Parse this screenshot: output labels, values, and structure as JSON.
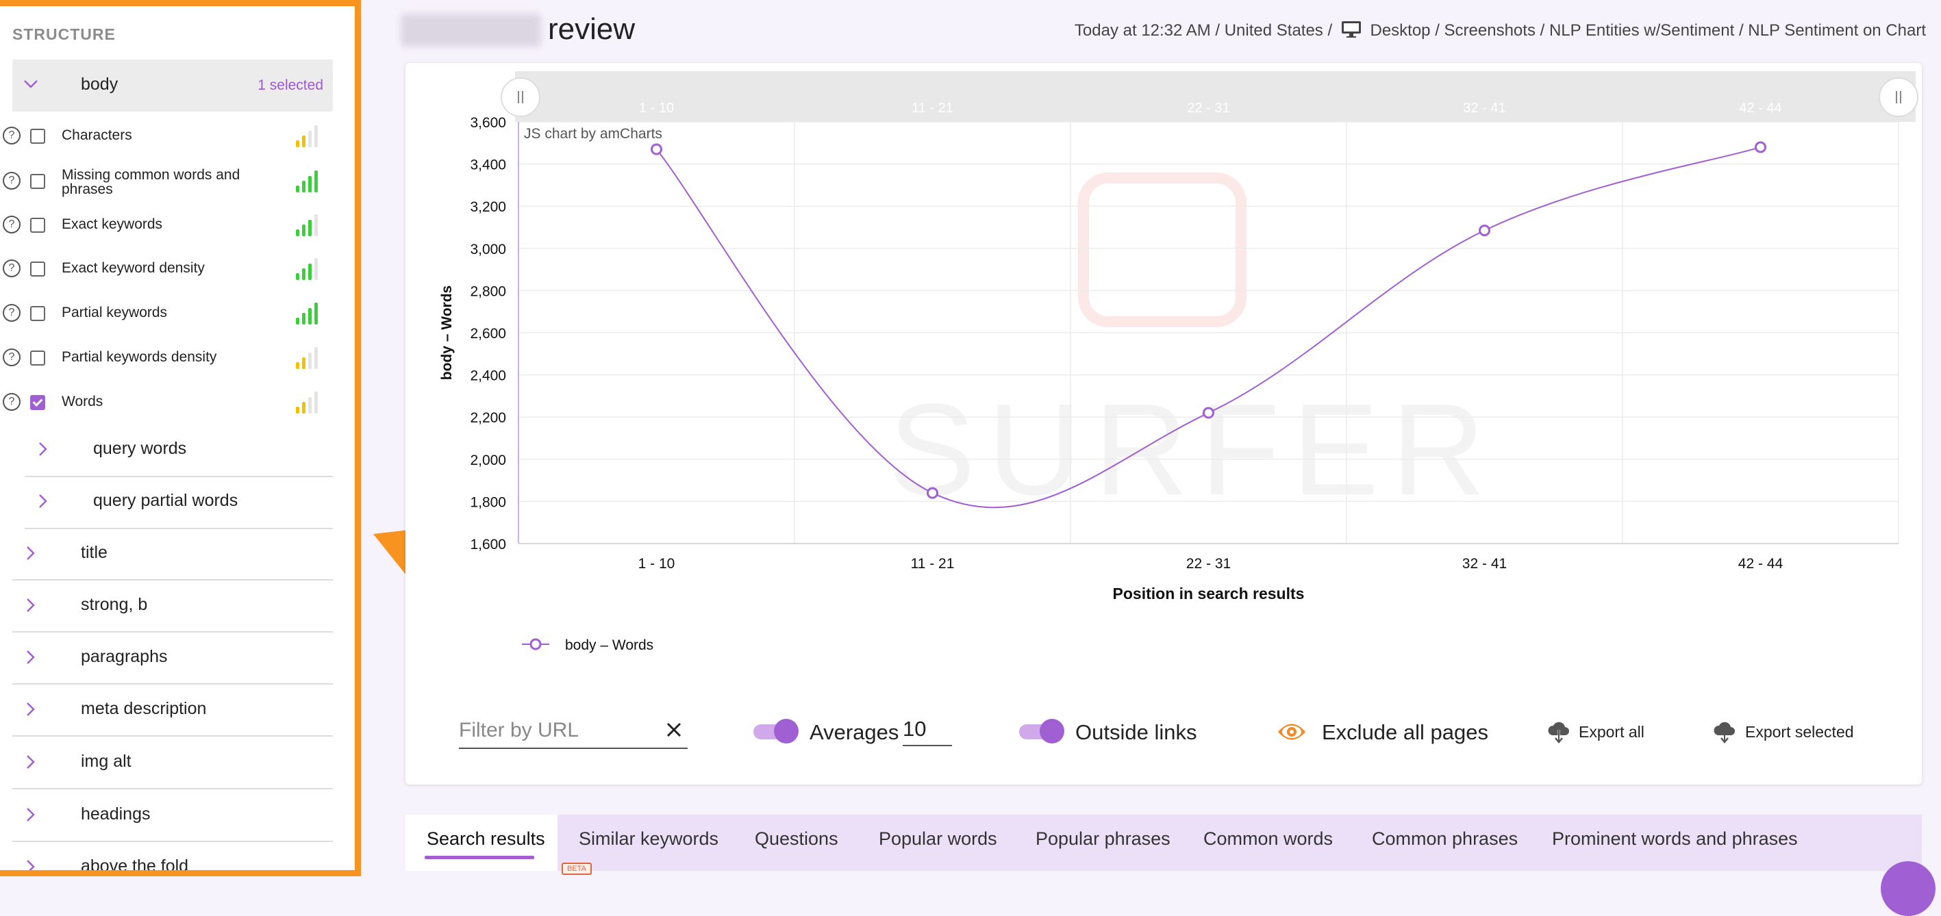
{
  "sidebar": {
    "title": "STRUCTURE",
    "body_row": {
      "label": "body",
      "selected": "1 selected"
    },
    "metrics": [
      {
        "label": "Characters",
        "checked": false,
        "strength": "yellow-2"
      },
      {
        "label": "Missing common words and phrases",
        "checked": false,
        "strength": "green-4"
      },
      {
        "label": "Exact keywords",
        "checked": false,
        "strength": "green-3"
      },
      {
        "label": "Exact keyword density",
        "checked": false,
        "strength": "green-3"
      },
      {
        "label": "Partial keywords",
        "checked": false,
        "strength": "green-4"
      },
      {
        "label": "Partial keywords density",
        "checked": false,
        "strength": "yellow-2"
      },
      {
        "label": "Words",
        "checked": true,
        "strength": "yellow-2"
      }
    ],
    "sub_sections": [
      "query words",
      "query partial words"
    ],
    "sections": [
      "title",
      "strong, b",
      "paragraphs",
      "meta description",
      "img alt",
      "headings",
      "above the fold"
    ]
  },
  "header": {
    "title": "review",
    "breadcrumb_pre": "Today at 12:32 AM / United States /",
    "breadcrumb_post": "Desktop / Screenshots / NLP Entities w/Sentiment / NLP Sentiment on Chart"
  },
  "chart_data": {
    "type": "line",
    "categories": [
      "1 - 10",
      "11 - 21",
      "22 - 31",
      "32 - 41",
      "42 - 44"
    ],
    "series": [
      {
        "name": "body – Words",
        "values": [
          3470,
          1840,
          2220,
          3085,
          3480
        ]
      }
    ],
    "xlabel": "Position in search results",
    "ylabel": "body – Words",
    "ylim": [
      1600,
      3600
    ],
    "yticks": [
      "1,600",
      "1,800",
      "2,000",
      "2,200",
      "2,400",
      "2,600",
      "2,800",
      "3,000",
      "3,200",
      "3,400",
      "3,600"
    ],
    "credit": "JS chart by amCharts",
    "watermark": "SURFER",
    "color": "#a05fd3",
    "legend": "bottom-left",
    "grid": true,
    "scrollbar_labels": [
      "1 - 10",
      "11 - 21",
      "22 - 31",
      "32 - 41",
      "42 - 44"
    ]
  },
  "controls": {
    "filter_placeholder": "Filter by URL",
    "averages_label": "Averages",
    "averages_value": "10",
    "outside_links_label": "Outside links",
    "exclude_label": "Exclude all pages",
    "export_all": "Export all",
    "export_selected": "Export selected"
  },
  "tabs": [
    "Search results",
    "Similar keywords",
    "Questions",
    "Popular words",
    "Popular phrases",
    "Common words",
    "Common phrases",
    "Prominent words and phrases"
  ],
  "beta": "BETA",
  "colors": {
    "accent": "#a05fd3",
    "highlight": "#f7931e",
    "bar_green": "#3ccf3c",
    "bar_yellow": "#f2c200"
  }
}
